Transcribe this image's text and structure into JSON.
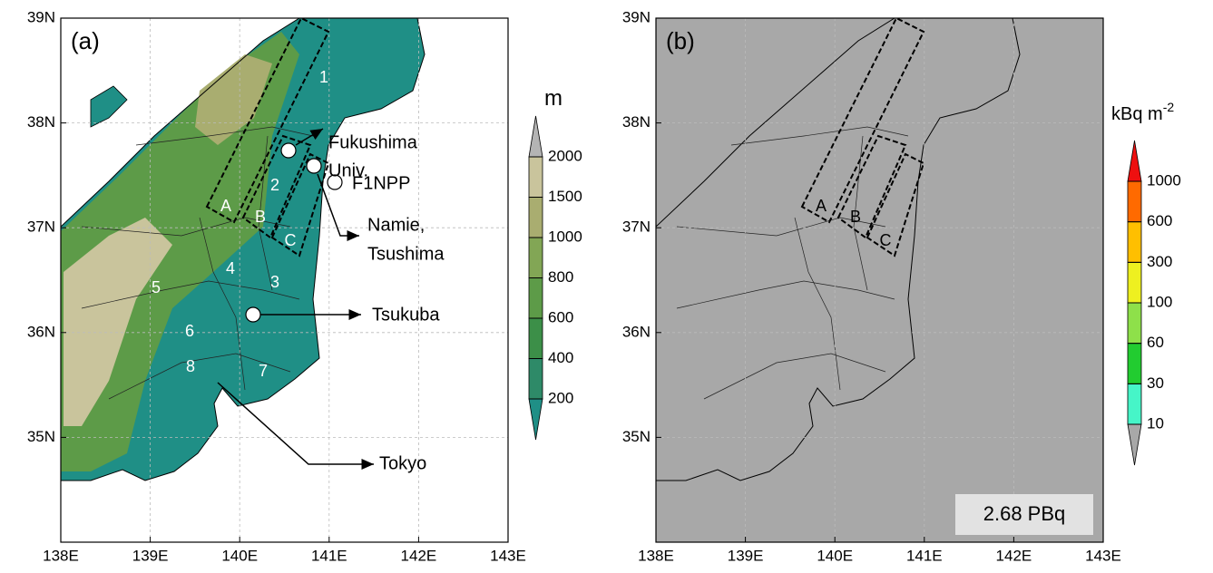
{
  "panels": [
    {
      "label": "(a)",
      "xlim": [
        138,
        143
      ],
      "ylim": [
        34,
        39
      ],
      "xticks": [
        {
          "value": 138,
          "label": "138E"
        },
        {
          "value": 139,
          "label": "139E"
        },
        {
          "value": 140,
          "label": "140E"
        },
        {
          "value": 141,
          "label": "141E"
        },
        {
          "value": 142,
          "label": "142E"
        },
        {
          "value": 143,
          "label": "143E"
        }
      ],
      "yticks": [
        {
          "value": 35,
          "label": "35N"
        },
        {
          "value": 36,
          "label": "36N"
        },
        {
          "value": 37,
          "label": "37N"
        },
        {
          "value": 38,
          "label": "38N"
        },
        {
          "value": 39,
          "label": "39N"
        }
      ],
      "colorbar": {
        "unit": "m",
        "levels": [
          200,
          400,
          600,
          800,
          1000,
          1500,
          2000
        ],
        "colors": [
          "#1f8f86",
          "#2e8a68",
          "#3c8f48",
          "#5d9b48",
          "#82a655",
          "#a9ad70",
          "#c9c49c",
          "#b4b4b4"
        ]
      },
      "region_labels": [
        "1",
        "2",
        "3",
        "4",
        "5",
        "6",
        "7",
        "8"
      ],
      "box_labels": [
        "A",
        "B",
        "C"
      ],
      "places": {
        "fukushima_univ": [
          "Fukushima",
          "Univ."
        ],
        "f1npp": "F1NPP",
        "namie": [
          "Namie,",
          "Tsushima"
        ],
        "tsukuba": "Tsukuba",
        "tokyo": "Tokyo"
      }
    },
    {
      "label": "(b)",
      "xlim": [
        138,
        143
      ],
      "ylim": [
        34,
        39
      ],
      "xticks": [
        {
          "value": 138,
          "label": "138E"
        },
        {
          "value": 139,
          "label": "139E"
        },
        {
          "value": 140,
          "label": "140E"
        },
        {
          "value": 141,
          "label": "141E"
        },
        {
          "value": 142,
          "label": "142E"
        },
        {
          "value": 143,
          "label": "143E"
        }
      ],
      "yticks": [
        {
          "value": 35,
          "label": "35N"
        },
        {
          "value": 36,
          "label": "36N"
        },
        {
          "value": 37,
          "label": "37N"
        },
        {
          "value": 38,
          "label": "38N"
        },
        {
          "value": 39,
          "label": "39N"
        }
      ],
      "colorbar": {
        "unit": "kBq m",
        "unit_superscript": "-2",
        "levels": [
          10,
          30,
          60,
          100,
          300,
          600,
          1000
        ],
        "colors": [
          "#a8a8a8",
          "#46f5c8",
          "#22cc30",
          "#8ee04a",
          "#eef020",
          "#ffbf00",
          "#ff6a00",
          "#ee1010"
        ]
      },
      "box_labels": [
        "A",
        "B",
        "C"
      ],
      "total": "2.68 PBq"
    }
  ]
}
